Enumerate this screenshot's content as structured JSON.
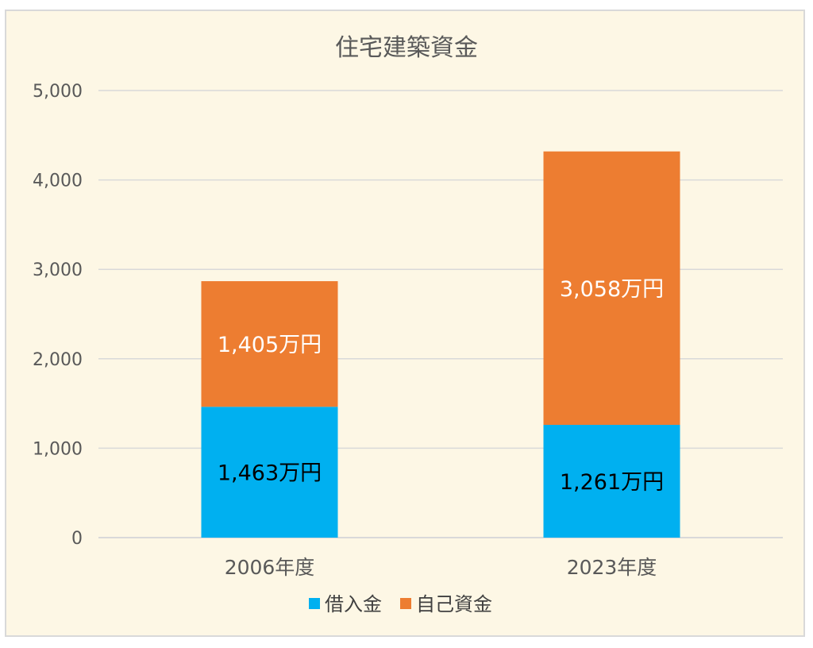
{
  "chart_data": {
    "type": "bar",
    "stacked": true,
    "title": "住宅建築資金",
    "categories": [
      "2006年度",
      "2023年度"
    ],
    "series": [
      {
        "name": "借入金",
        "color": "#00b0f0",
        "label_color": "#000000",
        "values": [
          1463,
          1261
        ],
        "labels": [
          "1,463万円",
          "1,261万円"
        ]
      },
      {
        "name": "自己資金",
        "color": "#ed7d31",
        "label_color": "#ffffff",
        "values": [
          1405,
          3058
        ],
        "labels": [
          "1,405万円",
          "3,058万円"
        ]
      }
    ],
    "ylim": [
      0,
      5000
    ],
    "yticks": [
      0,
      1000,
      2000,
      3000,
      4000,
      5000
    ],
    "ytick_labels": [
      "0",
      "1,000",
      "2,000",
      "3,000",
      "4,000",
      "5,000"
    ],
    "grid": true,
    "legend": "bottom",
    "colors": {
      "background": "#fdf7e5",
      "gridline": "#d9d9d9",
      "text": "#595959"
    }
  }
}
